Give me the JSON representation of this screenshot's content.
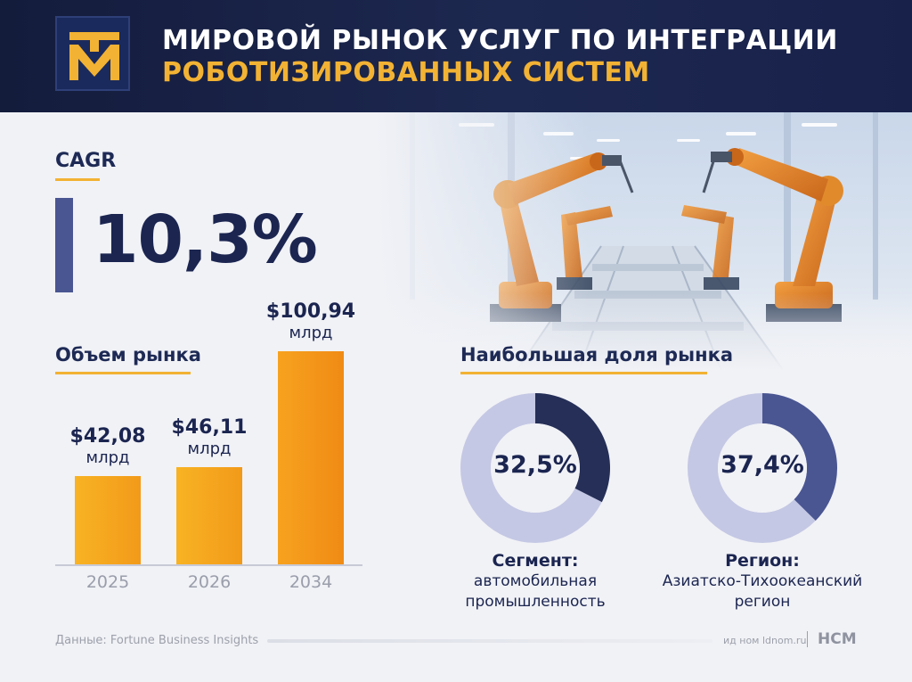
{
  "header": {
    "title_line1": "МИРОВОЙ РЫНОК УСЛУГ ПО ИНТЕГРАЦИИ",
    "title_line2": "РОБОТИЗИРОВАННЫХ СИСТЕМ"
  },
  "colors": {
    "navy": "#1b2550",
    "accent_gold": "#f2b233",
    "bar_orange": "#f7a21f",
    "donut_light": "#c5c8e4",
    "donut_dark_1": "#252f57",
    "donut_dark_2": "#4a5692"
  },
  "cagr": {
    "label": "CAGR",
    "value": "10,3%"
  },
  "market_volume": {
    "title": "Объем рынка"
  },
  "largest_share": {
    "title": "Наибольшая доля рынка"
  },
  "chart_data": [
    {
      "type": "bar",
      "title": "Объем рынка",
      "categories": [
        "2025",
        "2026",
        "2034"
      ],
      "values": [
        42.08,
        46.11,
        100.94
      ],
      "value_labels": [
        "$42,08",
        "$46,11",
        "$100,94"
      ],
      "unit": "млрд",
      "ylim": [
        0,
        110
      ],
      "grid": false
    },
    {
      "type": "pie",
      "variant": "donut",
      "value": 32.5,
      "center_label": "32,5%",
      "caption_head": "Сегмент:",
      "caption_lines": [
        "автомобильная",
        "промышленность"
      ]
    },
    {
      "type": "pie",
      "variant": "donut",
      "value": 37.4,
      "center_label": "37,4%",
      "caption_head": "Регион:",
      "caption_lines": [
        "Азиатско-Тихоокеанский",
        "регион"
      ]
    }
  ],
  "footer": {
    "source": "Данные: Fortune Business Insights",
    "site": "ид ном ldnom.ru",
    "brand": "НСМ"
  },
  "icons": {
    "logo": "tm-logo-icon"
  }
}
